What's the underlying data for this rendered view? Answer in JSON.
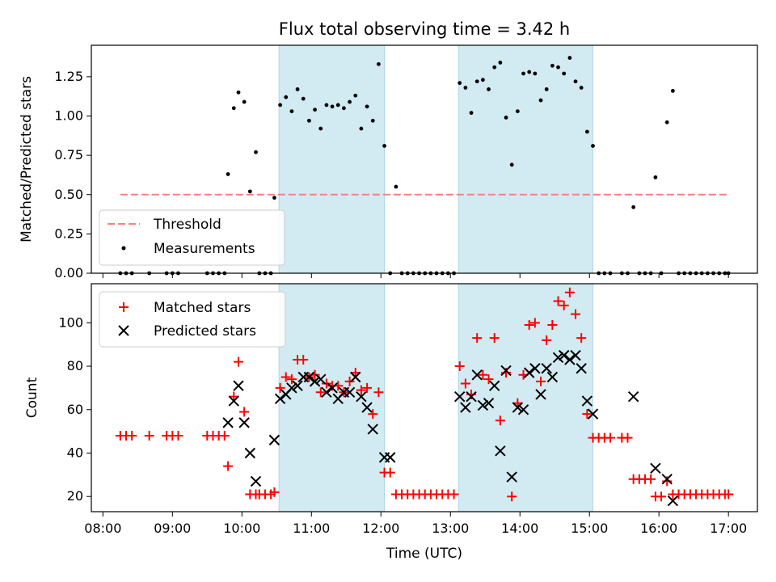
{
  "chart_data": {
    "title": "Flux total observing time = 3.42 h",
    "xlabel": "Time (UTC)",
    "x_ticks": [
      "08:00",
      "09:00",
      "10:00",
      "11:00",
      "12:00",
      "13:00",
      "14:00",
      "15:00",
      "16:00",
      "17:00"
    ],
    "xlim": [
      "07:50",
      "17:25"
    ],
    "shaded_intervals": [
      [
        "10:32",
        "12:03"
      ],
      [
        "13:07",
        "15:03"
      ]
    ],
    "colors": {
      "shade": "#add8e6",
      "matched": "#ff0000",
      "predicted": "#000000",
      "threshold": "#ff7f7f",
      "measurement": "#000000"
    },
    "top": {
      "type": "scatter",
      "ylabel": "Matched/Predicted stars",
      "ylim": [
        0,
        1.45
      ],
      "y_ticks": [
        "0.00",
        "0.25",
        "0.50",
        "0.75",
        "1.00",
        "1.25"
      ],
      "threshold": {
        "name": "Threshold",
        "value": 0.5,
        "x": [
          "08:15",
          "17:00"
        ]
      },
      "legend": {
        "placement": "lower-left",
        "entries": [
          "Threshold",
          "Measurements"
        ]
      },
      "series": [
        {
          "name": "Measurements",
          "points": [
            [
              "08:15",
              0
            ],
            [
              "08:20",
              0
            ],
            [
              "08:25",
              0
            ],
            [
              "08:40",
              0
            ],
            [
              "08:55",
              0
            ],
            [
              "09:00",
              0
            ],
            [
              "09:05",
              0
            ],
            [
              "09:30",
              0
            ],
            [
              "09:35",
              0
            ],
            [
              "09:40",
              0
            ],
            [
              "09:45",
              0
            ],
            [
              "09:48",
              0.63
            ],
            [
              "09:53",
              1.05
            ],
            [
              "09:57",
              1.15
            ],
            [
              "10:02",
              1.09
            ],
            [
              "10:07",
              0.52
            ],
            [
              "10:12",
              0.77
            ],
            [
              "10:15",
              0
            ],
            [
              "10:20",
              0
            ],
            [
              "10:25",
              0
            ],
            [
              "10:28",
              0.48
            ],
            [
              "10:33",
              1.07
            ],
            [
              "10:38",
              1.12
            ],
            [
              "10:43",
              1.03
            ],
            [
              "10:48",
              1.17
            ],
            [
              "10:53",
              1.11
            ],
            [
              "10:58",
              0.97
            ],
            [
              "11:03",
              1.04
            ],
            [
              "11:08",
              0.92
            ],
            [
              "11:13",
              1.07
            ],
            [
              "11:18",
              1.06
            ],
            [
              "11:23",
              1.07
            ],
            [
              "11:28",
              1.05
            ],
            [
              "11:33",
              1.09
            ],
            [
              "11:38",
              1.13
            ],
            [
              "11:43",
              0.92
            ],
            [
              "11:48",
              1.06
            ],
            [
              "11:53",
              0.97
            ],
            [
              "11:58",
              1.33
            ],
            [
              "12:03",
              0.81
            ],
            [
              "12:08",
              0
            ],
            [
              "12:13",
              0.55
            ],
            [
              "12:18",
              0
            ],
            [
              "12:23",
              0
            ],
            [
              "12:28",
              0
            ],
            [
              "12:33",
              0
            ],
            [
              "12:38",
              0
            ],
            [
              "12:43",
              0
            ],
            [
              "12:48",
              0
            ],
            [
              "12:53",
              0
            ],
            [
              "12:58",
              0
            ],
            [
              "13:03",
              0
            ],
            [
              "13:08",
              1.21
            ],
            [
              "13:13",
              1.18
            ],
            [
              "13:18",
              1.02
            ],
            [
              "13:23",
              1.22
            ],
            [
              "13:28",
              1.23
            ],
            [
              "13:33",
              1.17
            ],
            [
              "13:38",
              1.31
            ],
            [
              "13:43",
              1.34
            ],
            [
              "13:48",
              0.99
            ],
            [
              "13:53",
              0.69
            ],
            [
              "13:58",
              1.03
            ],
            [
              "14:03",
              1.27
            ],
            [
              "14:08",
              1.28
            ],
            [
              "14:13",
              1.27
            ],
            [
              "14:18",
              1.1
            ],
            [
              "14:23",
              1.17
            ],
            [
              "14:28",
              1.32
            ],
            [
              "14:33",
              1.31
            ],
            [
              "14:38",
              1.27
            ],
            [
              "14:43",
              1.37
            ],
            [
              "14:48",
              1.22
            ],
            [
              "14:53",
              1.18
            ],
            [
              "14:58",
              0.9
            ],
            [
              "15:03",
              0.81
            ],
            [
              "15:08",
              0
            ],
            [
              "15:13",
              0
            ],
            [
              "15:18",
              0
            ],
            [
              "15:28",
              0
            ],
            [
              "15:33",
              0
            ],
            [
              "15:38",
              0.42
            ],
            [
              "15:43",
              0
            ],
            [
              "15:48",
              0
            ],
            [
              "15:53",
              0
            ],
            [
              "15:57",
              0.61
            ],
            [
              "16:02",
              0
            ],
            [
              "16:07",
              0.96
            ],
            [
              "16:12",
              1.16
            ],
            [
              "16:17",
              0
            ],
            [
              "16:22",
              0
            ],
            [
              "16:27",
              0
            ],
            [
              "16:32",
              0
            ],
            [
              "16:37",
              0
            ],
            [
              "16:42",
              0
            ],
            [
              "16:47",
              0
            ],
            [
              "16:52",
              0
            ],
            [
              "16:57",
              0
            ],
            [
              "17:00",
              0
            ]
          ]
        }
      ]
    },
    "bottom": {
      "type": "scatter",
      "ylabel": "Count",
      "ylim": [
        13,
        118
      ],
      "y_ticks": [
        "20",
        "40",
        "60",
        "80",
        "100"
      ],
      "legend": {
        "placement": "upper-left",
        "entries": [
          "Matched stars",
          "Predicted stars"
        ]
      },
      "series": [
        {
          "name": "Matched stars",
          "marker": "plus",
          "points": [
            [
              "08:15",
              48
            ],
            [
              "08:20",
              48
            ],
            [
              "08:25",
              48
            ],
            [
              "08:40",
              48
            ],
            [
              "08:55",
              48
            ],
            [
              "09:00",
              48
            ],
            [
              "09:05",
              48
            ],
            [
              "09:30",
              48
            ],
            [
              "09:35",
              48
            ],
            [
              "09:40",
              48
            ],
            [
              "09:45",
              48
            ],
            [
              "09:48",
              34
            ],
            [
              "09:53",
              66
            ],
            [
              "09:57",
              82
            ],
            [
              "10:02",
              59
            ],
            [
              "10:07",
              21
            ],
            [
              "10:12",
              21
            ],
            [
              "10:15",
              21
            ],
            [
              "10:20",
              21
            ],
            [
              "10:25",
              21
            ],
            [
              "10:28",
              22
            ],
            [
              "10:33",
              70
            ],
            [
              "10:38",
              75
            ],
            [
              "10:43",
              74
            ],
            [
              "10:48",
              83
            ],
            [
              "10:53",
              83
            ],
            [
              "10:58",
              75
            ],
            [
              "11:03",
              76
            ],
            [
              "11:08",
              68
            ],
            [
              "11:13",
              72
            ],
            [
              "11:18",
              71
            ],
            [
              "11:23",
              71
            ],
            [
              "11:28",
              68
            ],
            [
              "11:33",
              73
            ],
            [
              "11:38",
              77
            ],
            [
              "11:43",
              69
            ],
            [
              "11:48",
              70
            ],
            [
              "11:53",
              58
            ],
            [
              "11:58",
              68
            ],
            [
              "12:03",
              31
            ],
            [
              "12:08",
              31
            ],
            [
              "12:13",
              21
            ],
            [
              "12:18",
              21
            ],
            [
              "12:23",
              21
            ],
            [
              "12:28",
              21
            ],
            [
              "12:33",
              21
            ],
            [
              "12:38",
              21
            ],
            [
              "12:43",
              21
            ],
            [
              "12:48",
              21
            ],
            [
              "12:53",
              21
            ],
            [
              "12:58",
              21
            ],
            [
              "13:03",
              21
            ],
            [
              "13:08",
              80
            ],
            [
              "13:13",
              72
            ],
            [
              "13:18",
              67
            ],
            [
              "13:23",
              93
            ],
            [
              "13:28",
              76
            ],
            [
              "13:33",
              74
            ],
            [
              "13:38",
              93
            ],
            [
              "13:43",
              55
            ],
            [
              "13:48",
              77
            ],
            [
              "13:53",
              20
            ],
            [
              "13:58",
              63
            ],
            [
              "14:03",
              76
            ],
            [
              "14:08",
              99
            ],
            [
              "14:13",
              100
            ],
            [
              "14:18",
              73
            ],
            [
              "14:23",
              92
            ],
            [
              "14:28",
              99
            ],
            [
              "14:33",
              110
            ],
            [
              "14:38",
              108
            ],
            [
              "14:43",
              114
            ],
            [
              "14:48",
              104
            ],
            [
              "14:53",
              93
            ],
            [
              "14:58",
              58
            ],
            [
              "15:03",
              47
            ],
            [
              "15:08",
              47
            ],
            [
              "15:13",
              47
            ],
            [
              "15:18",
              47
            ],
            [
              "15:28",
              47
            ],
            [
              "15:33",
              47
            ],
            [
              "15:38",
              28
            ],
            [
              "15:43",
              28
            ],
            [
              "15:48",
              28
            ],
            [
              "15:53",
              28
            ],
            [
              "15:57",
              20
            ],
            [
              "16:02",
              20
            ],
            [
              "16:07",
              27
            ],
            [
              "16:12",
              21
            ],
            [
              "16:17",
              21
            ],
            [
              "16:22",
              21
            ],
            [
              "16:27",
              21
            ],
            [
              "16:32",
              21
            ],
            [
              "16:37",
              21
            ],
            [
              "16:42",
              21
            ],
            [
              "16:47",
              21
            ],
            [
              "16:52",
              21
            ],
            [
              "16:57",
              21
            ],
            [
              "17:00",
              21
            ]
          ]
        },
        {
          "name": "Predicted stars",
          "marker": "x",
          "points": [
            [
              "09:48",
              54
            ],
            [
              "09:53",
              64
            ],
            [
              "09:57",
              71
            ],
            [
              "10:02",
              54
            ],
            [
              "10:07",
              40
            ],
            [
              "10:12",
              27
            ],
            [
              "10:28",
              46
            ],
            [
              "10:33",
              65
            ],
            [
              "10:38",
              67
            ],
            [
              "10:43",
              70
            ],
            [
              "10:48",
              71
            ],
            [
              "10:53",
              75
            ],
            [
              "10:58",
              75
            ],
            [
              "11:03",
              73
            ],
            [
              "11:08",
              74
            ],
            [
              "11:13",
              68
            ],
            [
              "11:18",
              70
            ],
            [
              "11:23",
              65
            ],
            [
              "11:28",
              68
            ],
            [
              "11:33",
              68
            ],
            [
              "11:38",
              75
            ],
            [
              "11:43",
              66
            ],
            [
              "11:48",
              61
            ],
            [
              "11:53",
              51
            ],
            [
              "12:03",
              38
            ],
            [
              "12:08",
              38
            ],
            [
              "13:08",
              66
            ],
            [
              "13:13",
              61
            ],
            [
              "13:18",
              66
            ],
            [
              "13:23",
              76
            ],
            [
              "13:28",
              62
            ],
            [
              "13:33",
              63
            ],
            [
              "13:38",
              71
            ],
            [
              "13:43",
              41
            ],
            [
              "13:48",
              78
            ],
            [
              "13:53",
              29
            ],
            [
              "13:58",
              61
            ],
            [
              "14:03",
              60
            ],
            [
              "14:08",
              77
            ],
            [
              "14:13",
              79
            ],
            [
              "14:18",
              67
            ],
            [
              "14:23",
              79
            ],
            [
              "14:28",
              75
            ],
            [
              "14:33",
              84
            ],
            [
              "14:38",
              85
            ],
            [
              "14:43",
              83
            ],
            [
              "14:48",
              85
            ],
            [
              "14:53",
              79
            ],
            [
              "14:58",
              64
            ],
            [
              "15:03",
              58
            ],
            [
              "15:38",
              66
            ],
            [
              "15:57",
              33
            ],
            [
              "16:07",
              28
            ],
            [
              "16:12",
              18
            ]
          ]
        }
      ]
    }
  }
}
